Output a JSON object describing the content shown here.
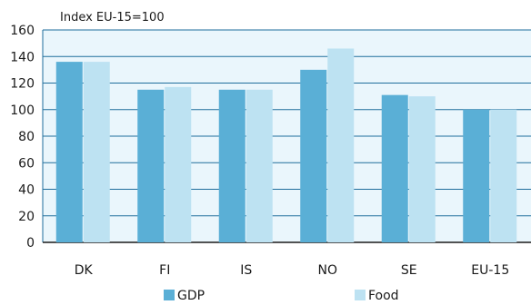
{
  "chart_data": {
    "type": "bar",
    "ylabel": "Index EU-15=100",
    "categories": [
      "DK",
      "FI",
      "IS",
      "NO",
      "SE",
      "EU-15"
    ],
    "series": [
      {
        "name": "GDP",
        "values": [
          136,
          115,
          115,
          130,
          111,
          100
        ],
        "color": "#5aafd6"
      },
      {
        "name": "Food",
        "values": [
          136,
          117,
          115,
          146,
          110,
          100
        ],
        "color": "#bde2f2"
      }
    ],
    "ylim": [
      0,
      160
    ],
    "yticks": [
      0,
      20,
      40,
      60,
      80,
      100,
      120,
      140,
      160
    ],
    "grid": true,
    "legend_position": "bottom",
    "colors": {
      "plot_background": "#eaf6fc",
      "grid": "#1f6e9c",
      "axis": "#1a1a1a"
    }
  }
}
